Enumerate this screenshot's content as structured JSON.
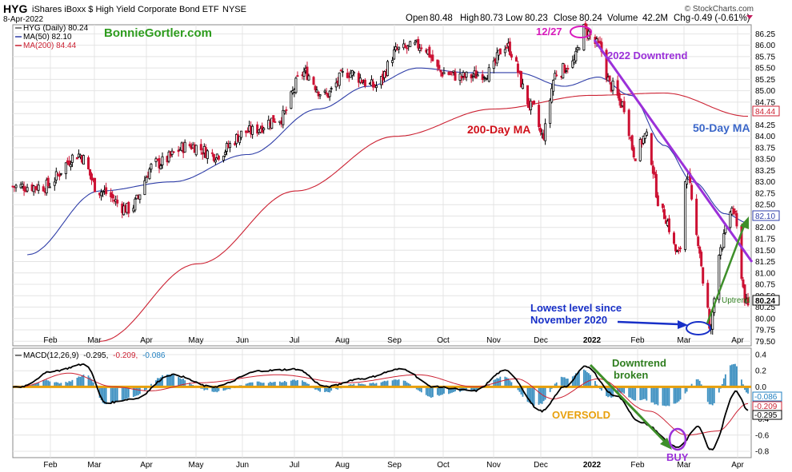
{
  "header": {
    "symbol": "HYG",
    "name": "iShares iBoxx $ High Yield Corporate Bond ETF",
    "exchange": "NYSE",
    "date": "8-Apr-2022",
    "copyright": "© StockCharts.com",
    "open_label": "Open",
    "open": "80.48",
    "high_label": "High",
    "high": "80.73",
    "low_label": "Low",
    "low": "80.23",
    "close_label": "Close",
    "close": "80.24",
    "volume_label": "Volume",
    "volume": "42.2M",
    "chg_label": "Chg",
    "chg": "-0.49 (-0.61%)"
  },
  "legend": {
    "price": "HYG (Daily) 80.24",
    "ma50": "MA(50) 82.10",
    "ma200": "MA(200) 84.44",
    "watermark": "BonnieGortler.com",
    "macd_prefix": "MACD(12,26,9)",
    "macd_v1": "-0.295,",
    "macd_v2": "-0.209,",
    "macd_v3": "-0.086"
  },
  "annotations": {
    "dec27": "12/27",
    "downtrend": "2022 Downtrend",
    "ma200": "200-Day MA",
    "ma50": "50-Day MA",
    "lowest_line1": "Lowest level since",
    "lowest_line2": "November 2020",
    "uptrend": "Uptrend",
    "downtrend_broken_1": "Downtrend",
    "downtrend_broken_2": "broken",
    "oversold": "OVERSOLD",
    "buy": "BUY"
  },
  "colors": {
    "ma50": "#2f3ea8",
    "ma200": "#cc2233",
    "purple": "#9b30d9",
    "magenta": "#d81bbd",
    "green": "#2e7d1e",
    "navy": "#1830c8",
    "orange": "#e8a00c",
    "red_text": "#d0101a",
    "blue_text": "#3a66c8",
    "down_candle": "#cc1133",
    "hist": "#3b8fc0"
  },
  "chart_data": [
    {
      "type": "candlestick",
      "title": "HYG iShares iBoxx $ High Yield Corporate Bond ETF NYSE",
      "period": "Daily",
      "x_tick_labels": [
        "Feb",
        "Mar",
        "Apr",
        "May",
        "Jun",
        "Jul",
        "Aug",
        "Sep",
        "Oct",
        "Nov",
        "Dec",
        "2022",
        "Feb",
        "Mar",
        "Apr"
      ],
      "y_ticks": [
        "86.25",
        "86.00",
        "85.75",
        "85.50",
        "85.25",
        "85.00",
        "84.75",
        "84.50",
        "84.25",
        "84.00",
        "83.75",
        "83.50",
        "83.25",
        "83.00",
        "82.75",
        "82.50",
        "82.25",
        "82.00",
        "81.75",
        "81.50",
        "81.25",
        "81.00",
        "80.75",
        "80.50",
        "80.25",
        "80.00",
        "79.75",
        "79.50"
      ],
      "ylim": [
        79.4,
        86.45
      ],
      "last_values": {
        "price": "80.24",
        "ma50": "82.10",
        "ma200": "84.44"
      },
      "price_anchors": [
        {
          "date": "2021-01-25",
          "value": 82.9
        },
        {
          "date": "2021-02-16",
          "value": 83.6
        },
        {
          "date": "2021-03-01",
          "value": 82.8
        },
        {
          "date": "2021-03-19",
          "value": 82.4
        },
        {
          "date": "2021-04-05",
          "value": 83.4
        },
        {
          "date": "2021-04-26",
          "value": 83.8
        },
        {
          "date": "2021-05-12",
          "value": 83.6
        },
        {
          "date": "2021-06-01",
          "value": 84.1
        },
        {
          "date": "2021-06-21",
          "value": 84.4
        },
        {
          "date": "2021-07-06",
          "value": 85.4
        },
        {
          "date": "2021-07-19",
          "value": 84.9
        },
        {
          "date": "2021-08-02",
          "value": 85.4
        },
        {
          "date": "2021-08-19",
          "value": 85.1
        },
        {
          "date": "2021-09-03",
          "value": 85.9
        },
        {
          "date": "2021-09-17",
          "value": 86.0
        },
        {
          "date": "2021-09-30",
          "value": 85.4
        },
        {
          "date": "2021-10-13",
          "value": 85.3
        },
        {
          "date": "2021-10-29",
          "value": 85.4
        },
        {
          "date": "2021-11-08",
          "value": 86.0
        },
        {
          "date": "2021-11-26",
          "value": 84.6
        },
        {
          "date": "2021-12-01",
          "value": 84.0
        },
        {
          "date": "2021-12-10",
          "value": 85.4
        },
        {
          "date": "2021-12-20",
          "value": 85.6
        },
        {
          "date": "2021-12-27",
          "value": 86.35
        },
        {
          "date": "2022-01-05",
          "value": 86.0
        },
        {
          "date": "2022-01-13",
          "value": 85.1
        },
        {
          "date": "2022-01-20",
          "value": 84.7
        },
        {
          "date": "2022-01-28",
          "value": 83.6
        },
        {
          "date": "2022-02-03",
          "value": 84.0
        },
        {
          "date": "2022-02-14",
          "value": 82.3
        },
        {
          "date": "2022-02-24",
          "value": 81.4
        },
        {
          "date": "2022-03-01",
          "value": 83.2
        },
        {
          "date": "2022-03-07",
          "value": 81.8
        },
        {
          "date": "2022-03-14",
          "value": 80.2
        },
        {
          "date": "2022-03-15",
          "value": 79.7
        },
        {
          "date": "2022-03-22",
          "value": 81.6
        },
        {
          "date": "2022-03-29",
          "value": 82.4
        },
        {
          "date": "2022-04-08",
          "value": 80.24
        }
      ],
      "ma50_anchors": [
        {
          "date": "2021-01-15",
          "value": 81.4
        },
        {
          "date": "2021-03-01",
          "value": 82.8
        },
        {
          "date": "2021-04-15",
          "value": 83.0
        },
        {
          "date": "2021-06-01",
          "value": 83.6
        },
        {
          "date": "2021-07-15",
          "value": 84.6
        },
        {
          "date": "2021-08-15",
          "value": 85.1
        },
        {
          "date": "2021-09-15",
          "value": 85.5
        },
        {
          "date": "2021-10-15",
          "value": 85.4
        },
        {
          "date": "2021-11-15",
          "value": 85.4
        },
        {
          "date": "2021-12-15",
          "value": 85.1
        },
        {
          "date": "2022-01-05",
          "value": 85.3
        },
        {
          "date": "2022-01-25",
          "value": 84.9
        },
        {
          "date": "2022-02-15",
          "value": 83.8
        },
        {
          "date": "2022-03-05",
          "value": 83.0
        },
        {
          "date": "2022-03-25",
          "value": 82.3
        },
        {
          "date": "2022-04-08",
          "value": 82.1
        }
      ],
      "ma200_anchors": [
        {
          "date": "2021-03-01",
          "value": 79.5
        },
        {
          "date": "2021-05-01",
          "value": 81.2
        },
        {
          "date": "2021-07-01",
          "value": 82.8
        },
        {
          "date": "2021-09-01",
          "value": 84.0
        },
        {
          "date": "2021-11-01",
          "value": 84.6
        },
        {
          "date": "2022-01-01",
          "value": 84.9
        },
        {
          "date": "2022-02-15",
          "value": 84.95
        },
        {
          "date": "2022-04-08",
          "value": 84.44
        }
      ],
      "annotations": [
        "12/27",
        "2022 Downtrend",
        "200-Day MA",
        "50-Day MA",
        "Lowest level since November 2020",
        "Uptrend"
      ]
    },
    {
      "type": "line",
      "title": "MACD(12,26,9)",
      "y_ticks": [
        "0.4",
        "0.2",
        "0.0",
        "-0.2",
        "-0.4",
        "-0.6",
        "-0.8"
      ],
      "ylim": [
        -0.88,
        0.48
      ],
      "last_values": {
        "macd": "-0.295",
        "signal": "-0.209",
        "histogram": "-0.086"
      },
      "series_names": [
        "MACD",
        "Signal",
        "Histogram"
      ],
      "macd_anchors": [
        {
          "date": "2021-01-10",
          "value": 0.0
        },
        {
          "date": "2021-02-01",
          "value": 0.2
        },
        {
          "date": "2021-02-20",
          "value": 0.28
        },
        {
          "date": "2021-03-05",
          "value": -0.2
        },
        {
          "date": "2021-03-22",
          "value": -0.15
        },
        {
          "date": "2021-04-15",
          "value": 0.15
        },
        {
          "date": "2021-05-10",
          "value": 0.0
        },
        {
          "date": "2021-06-10",
          "value": 0.2
        },
        {
          "date": "2021-07-01",
          "value": 0.22
        },
        {
          "date": "2021-07-20",
          "value": 0.0
        },
        {
          "date": "2021-08-10",
          "value": 0.1
        },
        {
          "date": "2021-09-05",
          "value": 0.22
        },
        {
          "date": "2021-09-25",
          "value": 0.0
        },
        {
          "date": "2021-10-20",
          "value": -0.05
        },
        {
          "date": "2021-11-08",
          "value": 0.2
        },
        {
          "date": "2021-12-01",
          "value": -0.3
        },
        {
          "date": "2021-12-15",
          "value": 0.0
        },
        {
          "date": "2021-12-28",
          "value": 0.25
        },
        {
          "date": "2022-01-15",
          "value": -0.1
        },
        {
          "date": "2022-02-01",
          "value": -0.45
        },
        {
          "date": "2022-02-24",
          "value": -0.75
        },
        {
          "date": "2022-03-08",
          "value": -0.5
        },
        {
          "date": "2022-03-16",
          "value": -0.78
        },
        {
          "date": "2022-04-01",
          "value": -0.05
        },
        {
          "date": "2022-04-08",
          "value": -0.295
        }
      ],
      "signal_anchors": [
        {
          "date": "2021-01-10",
          "value": 0.0
        },
        {
          "date": "2021-02-10",
          "value": 0.17
        },
        {
          "date": "2021-03-10",
          "value": 0.0
        },
        {
          "date": "2021-04-01",
          "value": -0.05
        },
        {
          "date": "2021-05-01",
          "value": 0.05
        },
        {
          "date": "2021-06-20",
          "value": 0.15
        },
        {
          "date": "2021-08-01",
          "value": 0.05
        },
        {
          "date": "2021-09-15",
          "value": 0.15
        },
        {
          "date": "2021-10-20",
          "value": 0.0
        },
        {
          "date": "2021-11-15",
          "value": 0.1
        },
        {
          "date": "2021-12-08",
          "value": -0.15
        },
        {
          "date": "2022-01-05",
          "value": 0.1
        },
        {
          "date": "2022-02-05",
          "value": -0.3
        },
        {
          "date": "2022-03-01",
          "value": -0.6
        },
        {
          "date": "2022-03-20",
          "value": -0.55
        },
        {
          "date": "2022-04-08",
          "value": -0.209
        }
      ],
      "annotations": [
        "Downtrend broken",
        "OVERSOLD",
        "BUY"
      ]
    }
  ]
}
